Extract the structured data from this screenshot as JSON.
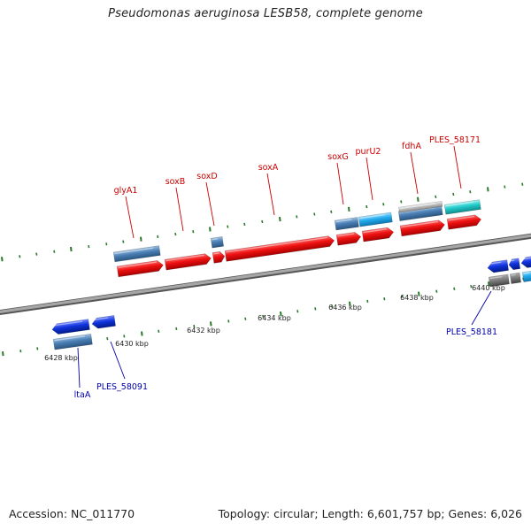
{
  "title": "Pseudomonas aeruginosa LESB58, complete genome",
  "footer": {
    "accession": "Accession: NC_011770",
    "summary": "Topology: circular; Length: 6,601,757 bp; Genes: 6,026"
  },
  "colors": {
    "forward_label": "#cc0000",
    "reverse_label": "#0000aa",
    "backbone": "#888888",
    "tick": "#2a7a2a",
    "cds_red": "#ee1111",
    "cds_blue": "#1133dd",
    "cds_steel": "#4a7fb5",
    "cds_sky": "#22aaee",
    "cds_teal": "#22cccc",
    "cds_grey": "#bbbbbb",
    "cds_darkgrey": "#777777"
  },
  "scale_labels": [
    "6428 kbp",
    "6430 kbp",
    "6432 kbp",
    "6434 kbp",
    "6436 kbp",
    "6438 kbp",
    "6440 kbp"
  ],
  "forward_labels": [
    "glyA1",
    "soxB",
    "soxD",
    "soxA",
    "soxG",
    "purU2",
    "fdhA",
    "PLES_58171"
  ],
  "reverse_labels": [
    "ltaA",
    "PLES_58091",
    "PLES_58181"
  ]
}
